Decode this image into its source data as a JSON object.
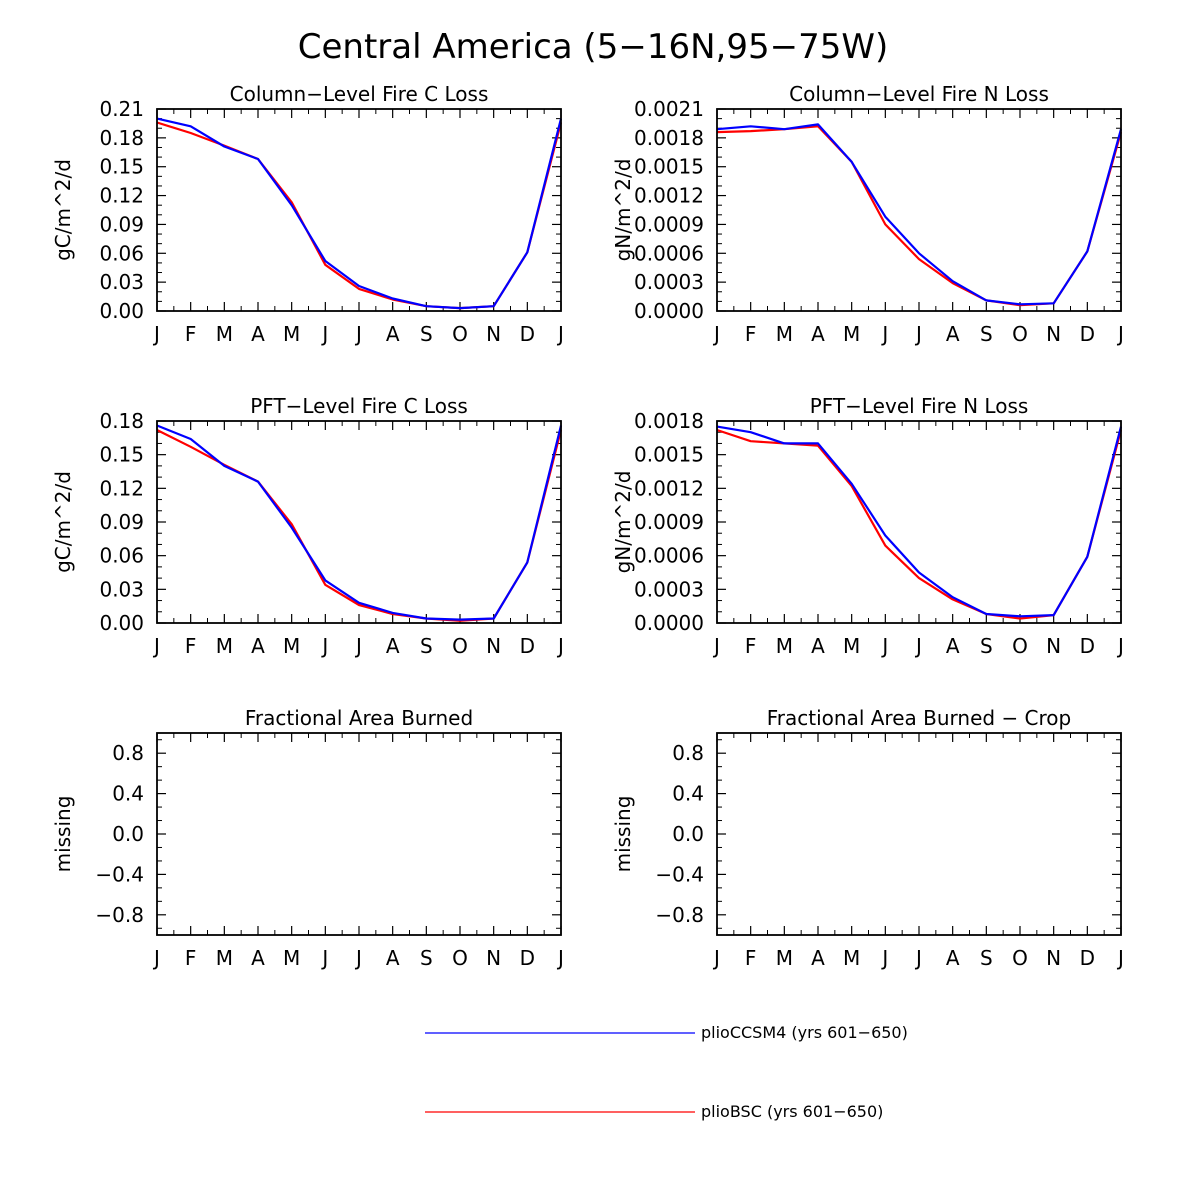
{
  "figure": {
    "title": "Central America (5−16N,95−75W)"
  },
  "colors": {
    "series_blue": "#0000ff",
    "series_red": "#ff0000",
    "axis": "#000000"
  },
  "legend": {
    "items": [
      {
        "label": "plioCCSM4 (yrs 601−650)",
        "color": "#0000ff"
      },
      {
        "label": "plioBSC (yrs 601−650)",
        "color": "#ff0000"
      }
    ]
  },
  "chart_data": [
    {
      "type": "line",
      "title": "Column−Level Fire C Loss",
      "xlabel": "",
      "ylabel": "gC/m^2/d",
      "categories": [
        "J",
        "F",
        "M",
        "A",
        "M",
        "J",
        "J",
        "A",
        "S",
        "O",
        "N",
        "D",
        "J"
      ],
      "ylim": [
        0,
        0.21
      ],
      "yticks": [
        "0.00",
        "0.03",
        "0.06",
        "0.09",
        "0.12",
        "0.15",
        "0.18",
        "0.21"
      ],
      "series": [
        {
          "name": "plioCCSM4 (yrs 601−650)",
          "color": "#0000ff",
          "values": [
            0.2,
            0.192,
            0.171,
            0.158,
            0.11,
            0.052,
            0.026,
            0.013,
            0.005,
            0.003,
            0.005,
            0.061,
            0.2
          ]
        },
        {
          "name": "plioBSC (yrs 601−650)",
          "color": "#ff0000",
          "values": [
            0.196,
            0.185,
            0.172,
            0.158,
            0.113,
            0.048,
            0.023,
            0.012,
            0.005,
            0.003,
            0.005,
            0.061,
            0.196
          ]
        }
      ]
    },
    {
      "type": "line",
      "title": "Column−Level Fire N Loss",
      "xlabel": "",
      "ylabel": "gN/m^2/d",
      "categories": [
        "J",
        "F",
        "M",
        "A",
        "M",
        "J",
        "J",
        "A",
        "S",
        "O",
        "N",
        "D",
        "J"
      ],
      "ylim": [
        0,
        0.0021
      ],
      "yticks": [
        "0.0000",
        "0.0003",
        "0.0006",
        "0.0009",
        "0.0012",
        "0.0015",
        "0.0018",
        "0.0021"
      ],
      "series": [
        {
          "name": "plioCCSM4 (yrs 601−650)",
          "color": "#0000ff",
          "values": [
            0.00189,
            0.00192,
            0.00189,
            0.00194,
            0.00155,
            0.00098,
            0.0006,
            0.00031,
            0.00011,
            7e-05,
            8e-05,
            0.00062,
            0.00189
          ]
        },
        {
          "name": "plioBSC (yrs 601−650)",
          "color": "#ff0000",
          "values": [
            0.00186,
            0.00187,
            0.00189,
            0.00192,
            0.00155,
            0.0009,
            0.00054,
            0.00029,
            0.00011,
            6e-05,
            8e-05,
            0.00062,
            0.00186
          ]
        }
      ]
    },
    {
      "type": "line",
      "title": "PFT−Level Fire C Loss",
      "xlabel": "",
      "ylabel": "gC/m^2/d",
      "categories": [
        "J",
        "F",
        "M",
        "A",
        "M",
        "J",
        "J",
        "A",
        "S",
        "O",
        "N",
        "D",
        "J"
      ],
      "ylim": [
        0,
        0.18
      ],
      "yticks": [
        "0.00",
        "0.03",
        "0.06",
        "0.09",
        "0.12",
        "0.15",
        "0.18"
      ],
      "series": [
        {
          "name": "plioCCSM4 (yrs 601−650)",
          "color": "#0000ff",
          "values": [
            0.176,
            0.164,
            0.14,
            0.126,
            0.085,
            0.038,
            0.018,
            0.009,
            0.004,
            0.003,
            0.004,
            0.054,
            0.176
          ]
        },
        {
          "name": "plioBSC (yrs 601−650)",
          "color": "#ff0000",
          "values": [
            0.172,
            0.157,
            0.141,
            0.126,
            0.088,
            0.034,
            0.016,
            0.008,
            0.004,
            0.002,
            0.004,
            0.054,
            0.172
          ]
        }
      ]
    },
    {
      "type": "line",
      "title": "PFT−Level Fire N Loss",
      "xlabel": "",
      "ylabel": "gN/m^2/d",
      "categories": [
        "J",
        "F",
        "M",
        "A",
        "M",
        "J",
        "J",
        "A",
        "S",
        "O",
        "N",
        "D",
        "J"
      ],
      "ylim": [
        0,
        0.0018
      ],
      "yticks": [
        "0.0000",
        "0.0003",
        "0.0006",
        "0.0009",
        "0.0012",
        "0.0015",
        "0.0018"
      ],
      "series": [
        {
          "name": "plioCCSM4 (yrs 601−650)",
          "color": "#0000ff",
          "values": [
            0.00175,
            0.0017,
            0.0016,
            0.0016,
            0.00124,
            0.00078,
            0.00045,
            0.00023,
            8e-05,
            6e-05,
            7e-05,
            0.00059,
            0.00175
          ]
        },
        {
          "name": "plioBSC (yrs 601−650)",
          "color": "#ff0000",
          "values": [
            0.00172,
            0.00162,
            0.0016,
            0.00158,
            0.00122,
            0.00069,
            0.0004,
            0.00021,
            8e-05,
            4e-05,
            7e-05,
            0.00059,
            0.00172
          ]
        }
      ]
    },
    {
      "type": "line",
      "title": "Fractional Area Burned",
      "xlabel": "",
      "ylabel": "missing",
      "categories": [
        "J",
        "F",
        "M",
        "A",
        "M",
        "J",
        "J",
        "A",
        "S",
        "O",
        "N",
        "D",
        "J"
      ],
      "ylim": [
        -1,
        1
      ],
      "yticks": [
        "−0.8",
        "−0.4",
        "0.0",
        "0.4",
        "0.8"
      ],
      "series": []
    },
    {
      "type": "line",
      "title": "Fractional Area Burned − Crop",
      "xlabel": "",
      "ylabel": "missing",
      "categories": [
        "J",
        "F",
        "M",
        "A",
        "M",
        "J",
        "J",
        "A",
        "S",
        "O",
        "N",
        "D",
        "J"
      ],
      "ylim": [
        -1,
        1
      ],
      "yticks": [
        "−0.8",
        "−0.4",
        "0.0",
        "0.4",
        "0.8"
      ],
      "series": []
    }
  ]
}
